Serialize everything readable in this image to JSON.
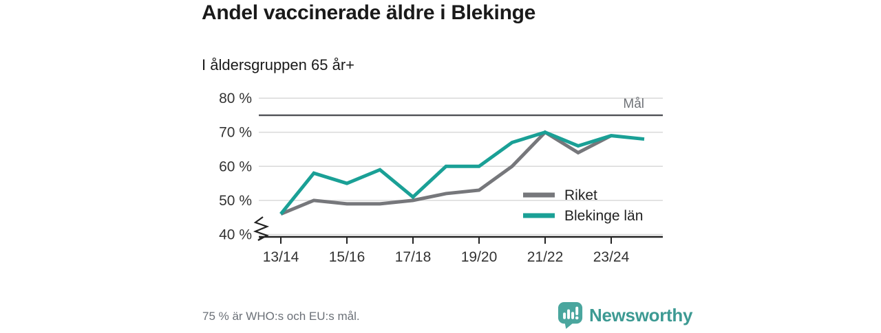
{
  "header": {},
  "chart_data": {
    "type": "line",
    "title": "Andel vaccinerade äldre i Blekinge",
    "subtitle": "I åldersgruppen 65 år+",
    "seasons": [
      "13/14",
      "14/15",
      "15/16",
      "16/17",
      "17/18",
      "18/19",
      "19/20",
      "20/21",
      "21/22",
      "22/23",
      "23/24",
      "24/25"
    ],
    "x_tick_indices": [
      0,
      2,
      4,
      6,
      8,
      10
    ],
    "x_tick_labels": [
      "13/14",
      "15/16",
      "17/18",
      "19/20",
      "21/22",
      "23/24"
    ],
    "y_ticks": [
      {
        "value": 40,
        "label": "40 %"
      },
      {
        "value": 50,
        "label": "50 %"
      },
      {
        "value": 60,
        "label": "60 %"
      },
      {
        "value": 70,
        "label": "70 %"
      },
      {
        "value": 80,
        "label": "80 %"
      }
    ],
    "ylim": [
      40,
      80
    ],
    "axis_break": true,
    "grid": true,
    "grid_color": "#d9d9d9",
    "axis_color": "#222222",
    "tick_label_color": "#333333",
    "goal_line": {
      "value": 75,
      "label": "Mål",
      "color": "#55565b",
      "label_color": "#6f7277"
    },
    "legend_position": "inside-right",
    "legend_text_color": "#222222",
    "series": [
      {
        "name": "Riket",
        "color": "#76777b",
        "values": [
          46,
          50,
          49,
          49,
          50,
          52,
          53,
          60,
          70,
          64,
          69
        ]
      },
      {
        "name": "Blekinge län",
        "color": "#1aa096",
        "values": [
          46,
          58,
          55,
          59,
          51,
          60,
          60,
          67,
          70,
          66,
          69,
          68
        ]
      }
    ]
  },
  "footer": {
    "note": "75 % är WHO:s och EU:s mål.",
    "brand": "Newsworthy",
    "brand_color": "#3d9a93",
    "logo_mark_color": "#4aa69e"
  }
}
